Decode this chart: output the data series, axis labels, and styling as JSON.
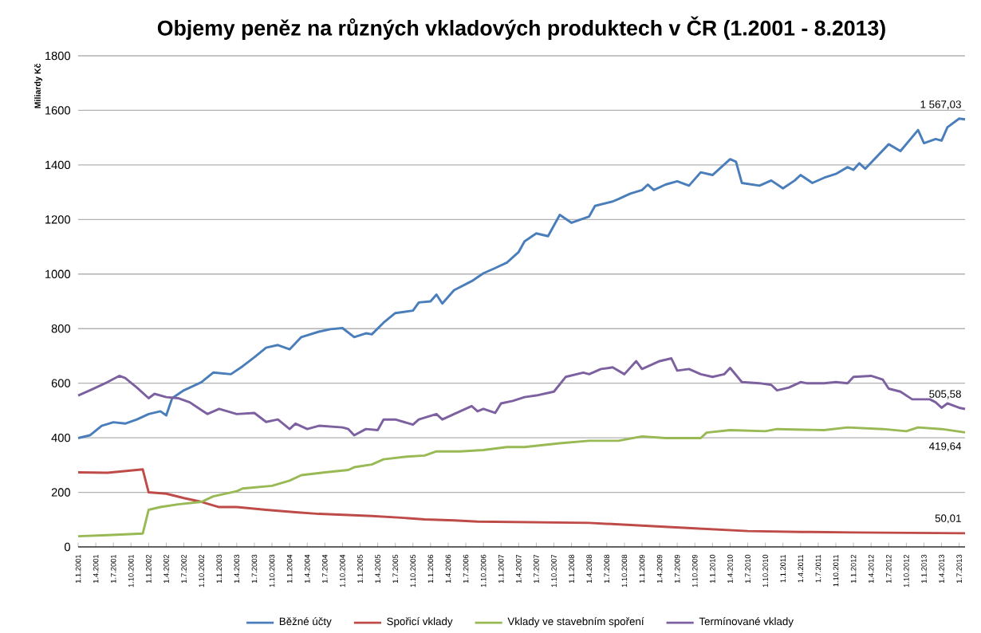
{
  "chart_data": {
    "type": "line",
    "title": "Objemy peněz na různých vkladových produktech v ČR (1.2001 - 8.2013)",
    "ylabel": "Miliardy Kč",
    "xlim": [
      "2001-01",
      "2013-08"
    ],
    "xticks": [
      {
        "value": "2001-01",
        "label": "1.1.2001"
      },
      {
        "value": "2001-04",
        "label": "1.4.2001"
      },
      {
        "value": "2001-07",
        "label": "1.7.2001"
      },
      {
        "value": "2001-10",
        "label": "1.10.2001"
      },
      {
        "value": "2002-01",
        "label": "1.1.2002"
      },
      {
        "value": "2002-04",
        "label": "1.4.2002"
      },
      {
        "value": "2002-07",
        "label": "1.7.2002"
      },
      {
        "value": "2002-10",
        "label": "1.10.2002"
      },
      {
        "value": "2003-01",
        "label": "1.1.2003"
      },
      {
        "value": "2003-04",
        "label": "1.4.2003"
      },
      {
        "value": "2003-07",
        "label": "1.7.2003"
      },
      {
        "value": "2003-10",
        "label": "1.10.2003"
      },
      {
        "value": "2004-01",
        "label": "1.1.2004"
      },
      {
        "value": "2004-04",
        "label": "1.4.2004"
      },
      {
        "value": "2004-07",
        "label": "1.7.2004"
      },
      {
        "value": "2004-10",
        "label": "1.10.2004"
      },
      {
        "value": "2005-01",
        "label": "1.1.2005"
      },
      {
        "value": "2005-04",
        "label": "1.4.2005"
      },
      {
        "value": "2005-07",
        "label": "1.7.2005"
      },
      {
        "value": "2005-10",
        "label": "1.10.2005"
      },
      {
        "value": "2006-01",
        "label": "1.1.2006"
      },
      {
        "value": "2006-04",
        "label": "1.4.2006"
      },
      {
        "value": "2006-07",
        "label": "1.7.2006"
      },
      {
        "value": "2006-10",
        "label": "1.10.2006"
      },
      {
        "value": "2007-01",
        "label": "1.1.2007"
      },
      {
        "value": "2007-04",
        "label": "1.4.2007"
      },
      {
        "value": "2007-07",
        "label": "1.7.2007"
      },
      {
        "value": "2007-10",
        "label": "1.10.2007"
      },
      {
        "value": "2008-01",
        "label": "1.1.2008"
      },
      {
        "value": "2008-04",
        "label": "1.4.2008"
      },
      {
        "value": "2008-07",
        "label": "1.7.2008"
      },
      {
        "value": "2008-10",
        "label": "1.10.2008"
      },
      {
        "value": "2009-01",
        "label": "1.1.2009"
      },
      {
        "value": "2009-04",
        "label": "1.4.2009"
      },
      {
        "value": "2009-07",
        "label": "1.7.2009"
      },
      {
        "value": "2009-10",
        "label": "1.10.2009"
      },
      {
        "value": "2010-01",
        "label": "1.1.2010"
      },
      {
        "value": "2010-04",
        "label": "1.4.2010"
      },
      {
        "value": "2010-07",
        "label": "1.7.2010"
      },
      {
        "value": "2010-10",
        "label": "1.10.2010"
      },
      {
        "value": "2011-01",
        "label": "1.1.2011"
      },
      {
        "value": "2011-04",
        "label": "1.4.2011"
      },
      {
        "value": "2011-07",
        "label": "1.7.2011"
      },
      {
        "value": "2011-10",
        "label": "1.10.2011"
      },
      {
        "value": "2012-01",
        "label": "1.1.2012"
      },
      {
        "value": "2012-04",
        "label": "1.4.2012"
      },
      {
        "value": "2012-07",
        "label": "1.7.2012"
      },
      {
        "value": "2012-10",
        "label": "1.10.2012"
      },
      {
        "value": "2013-01",
        "label": "1.1.2013"
      },
      {
        "value": "2013-04",
        "label": "1.4.2013"
      },
      {
        "value": "2013-07",
        "label": "1.7.2013"
      }
    ],
    "ylim": [
      0,
      1800
    ],
    "yticks": [
      0,
      200,
      400,
      600,
      800,
      1000,
      1200,
      1400,
      1600,
      1800
    ],
    "grid": "y",
    "legend": "bottom",
    "marker": "none",
    "line_style": "solid",
    "series": [
      {
        "name": "Běžné účty",
        "color": "#4a7ebb",
        "x": [
          "2001-01",
          "2001-03",
          "2001-05",
          "2001-07",
          "2001-09",
          "2001-11",
          "2002-01",
          "2002-03",
          "2002-04",
          "2002-05",
          "2002-07",
          "2002-10",
          "2002-12",
          "2003-03",
          "2003-05",
          "2003-07",
          "2003-09",
          "2003-11",
          "2004-01",
          "2004-03",
          "2004-06",
          "2004-08",
          "2004-10",
          "2004-12",
          "2005-02",
          "2005-03",
          "2005-05",
          "2005-07",
          "2005-10",
          "2005-11",
          "2006-01",
          "2006-02",
          "2006-03",
          "2006-05",
          "2006-08",
          "2006-10",
          "2006-12",
          "2007-02",
          "2007-04",
          "2007-05",
          "2007-07",
          "2007-09",
          "2007-11",
          "2008-01",
          "2008-04",
          "2008-05",
          "2008-08",
          "2008-09",
          "2008-11",
          "2009-01",
          "2009-02",
          "2009-03",
          "2009-05",
          "2009-07",
          "2009-09",
          "2009-11",
          "2010-01",
          "2010-04",
          "2010-05",
          "2010-06",
          "2010-09",
          "2010-11",
          "2011-01",
          "2011-03",
          "2011-04",
          "2011-06",
          "2011-08",
          "2011-10",
          "2011-12",
          "2012-01",
          "2012-02",
          "2012-03",
          "2012-05",
          "2012-07",
          "2012-09",
          "2012-12",
          "2013-01",
          "2013-03",
          "2013-04",
          "2013-05",
          "2013-07",
          "2013-08"
        ],
        "values": [
          399,
          409,
          444,
          457,
          452,
          467,
          487,
          497,
          482,
          545,
          574,
          604,
          639,
          633,
          662,
          695,
          730,
          740,
          724,
          769,
          789,
          798,
          802,
          769,
          783,
          779,
          822,
          857,
          866,
          896,
          900,
          925,
          892,
          941,
          974,
          1003,
          1022,
          1042,
          1081,
          1120,
          1149,
          1139,
          1217,
          1188,
          1211,
          1250,
          1266,
          1275,
          1295,
          1308,
          1328,
          1308,
          1328,
          1340,
          1324,
          1373,
          1363,
          1421,
          1412,
          1334,
          1324,
          1343,
          1314,
          1343,
          1363,
          1334,
          1353,
          1367,
          1392,
          1382,
          1406,
          1386,
          1431,
          1476,
          1451,
          1528,
          1480,
          1495,
          1489,
          1538,
          1570,
          1567.03
        ]
      },
      {
        "name": "Spořicí vklady",
        "color": "#be4b48",
        "x": [
          "2001-01",
          "2001-06",
          "2001-12",
          "2002-01",
          "2002-04",
          "2002-07",
          "2002-10",
          "2003-01",
          "2003-04",
          "2003-09",
          "2004-02",
          "2004-06",
          "2004-11",
          "2005-03",
          "2005-08",
          "2005-12",
          "2006-05",
          "2006-09",
          "2008-04",
          "2009-10",
          "2010-07",
          "2011-04",
          "2012-01",
          "2013-08"
        ],
        "values": [
          273,
          272,
          284,
          200,
          195,
          179,
          165,
          146,
          146,
          136,
          127,
          121,
          117,
          113,
          107,
          101,
          97,
          93,
          88,
          68,
          58,
          55,
          53,
          50.01
        ]
      },
      {
        "name": "Vklady ve stavebním spoření",
        "color": "#98b954",
        "x": [
          "2001-01",
          "2001-06",
          "2001-12",
          "2002-01",
          "2002-03",
          "2002-06",
          "2002-10",
          "2002-12",
          "2003-04",
          "2003-05",
          "2003-10",
          "2004-01",
          "2004-03",
          "2004-07",
          "2004-11",
          "2004-12",
          "2005-03",
          "2005-05",
          "2005-09",
          "2005-12",
          "2006-02",
          "2006-06",
          "2006-10",
          "2007-02",
          "2007-05",
          "2007-11",
          "2008-04",
          "2008-09",
          "2009-01",
          "2009-05",
          "2009-11",
          "2009-12",
          "2010-04",
          "2010-10",
          "2010-12",
          "2011-08",
          "2011-12",
          "2012-06",
          "2012-10",
          "2012-12",
          "2013-04",
          "2013-08"
        ],
        "values": [
          39,
          43,
          49,
          136,
          146,
          156,
          165,
          185,
          204,
          214,
          224,
          243,
          263,
          273,
          282,
          292,
          302,
          321,
          331,
          335,
          350,
          350,
          355,
          366,
          366,
          380,
          389,
          389,
          405,
          399,
          399,
          419,
          428,
          424,
          432,
          428,
          438,
          432,
          424,
          438,
          432,
          419.64
        ]
      },
      {
        "name": "Termínované vklady",
        "color": "#7d60a0",
        "x": [
          "2001-01",
          "2001-03",
          "2001-06",
          "2001-08",
          "2001-09",
          "2001-11",
          "2002-01",
          "2002-02",
          "2002-04",
          "2002-06",
          "2002-08",
          "2002-11",
          "2003-01",
          "2003-04",
          "2003-07",
          "2003-09",
          "2003-11",
          "2004-01",
          "2004-02",
          "2004-04",
          "2004-06",
          "2004-10",
          "2004-11",
          "2004-12",
          "2005-02",
          "2005-04",
          "2005-05",
          "2005-07",
          "2005-10",
          "2005-11",
          "2006-02",
          "2006-03",
          "2006-05",
          "2006-08",
          "2006-09",
          "2006-10",
          "2006-12",
          "2007-01",
          "2007-03",
          "2007-05",
          "2007-07",
          "2007-10",
          "2007-12",
          "2008-03",
          "2008-04",
          "2008-06",
          "2008-08",
          "2008-10",
          "2008-12",
          "2009-01",
          "2009-04",
          "2009-06",
          "2009-07",
          "2009-09",
          "2009-11",
          "2010-01",
          "2010-03",
          "2010-04",
          "2010-06",
          "2010-09",
          "2010-11",
          "2010-12",
          "2011-02",
          "2011-04",
          "2011-05",
          "2011-08",
          "2011-10",
          "2011-12",
          "2012-01",
          "2012-04",
          "2012-06",
          "2012-07",
          "2012-09",
          "2012-11",
          "2013-02",
          "2013-03",
          "2013-04",
          "2013-05",
          "2013-07",
          "2013-08"
        ],
        "values": [
          555,
          574,
          604,
          627,
          619,
          584,
          545,
          561,
          549,
          545,
          530,
          487,
          506,
          487,
          491,
          458,
          467,
          432,
          452,
          432,
          444,
          438,
          432,
          409,
          432,
          428,
          467,
          467,
          448,
          467,
          487,
          467,
          487,
          516,
          497,
          506,
          491,
          526,
          535,
          549,
          555,
          569,
          623,
          639,
          633,
          652,
          658,
          633,
          681,
          652,
          681,
          691,
          646,
          652,
          633,
          623,
          633,
          656,
          604,
          600,
          594,
          574,
          584,
          604,
          600,
          600,
          604,
          600,
          623,
          627,
          613,
          580,
          569,
          541,
          541,
          530,
          510,
          526,
          510,
          505.58
        ]
      }
    ],
    "annotations": [
      {
        "text": "1 567,03",
        "x": "2013-08",
        "y": 1567.03
      },
      {
        "text": "505,58",
        "x": "2013-08",
        "y": 505.58
      },
      {
        "text": "419,64",
        "x": "2013-08",
        "y": 419.64
      },
      {
        "text": "50,01",
        "x": "2013-08",
        "y": 50.01
      }
    ]
  }
}
